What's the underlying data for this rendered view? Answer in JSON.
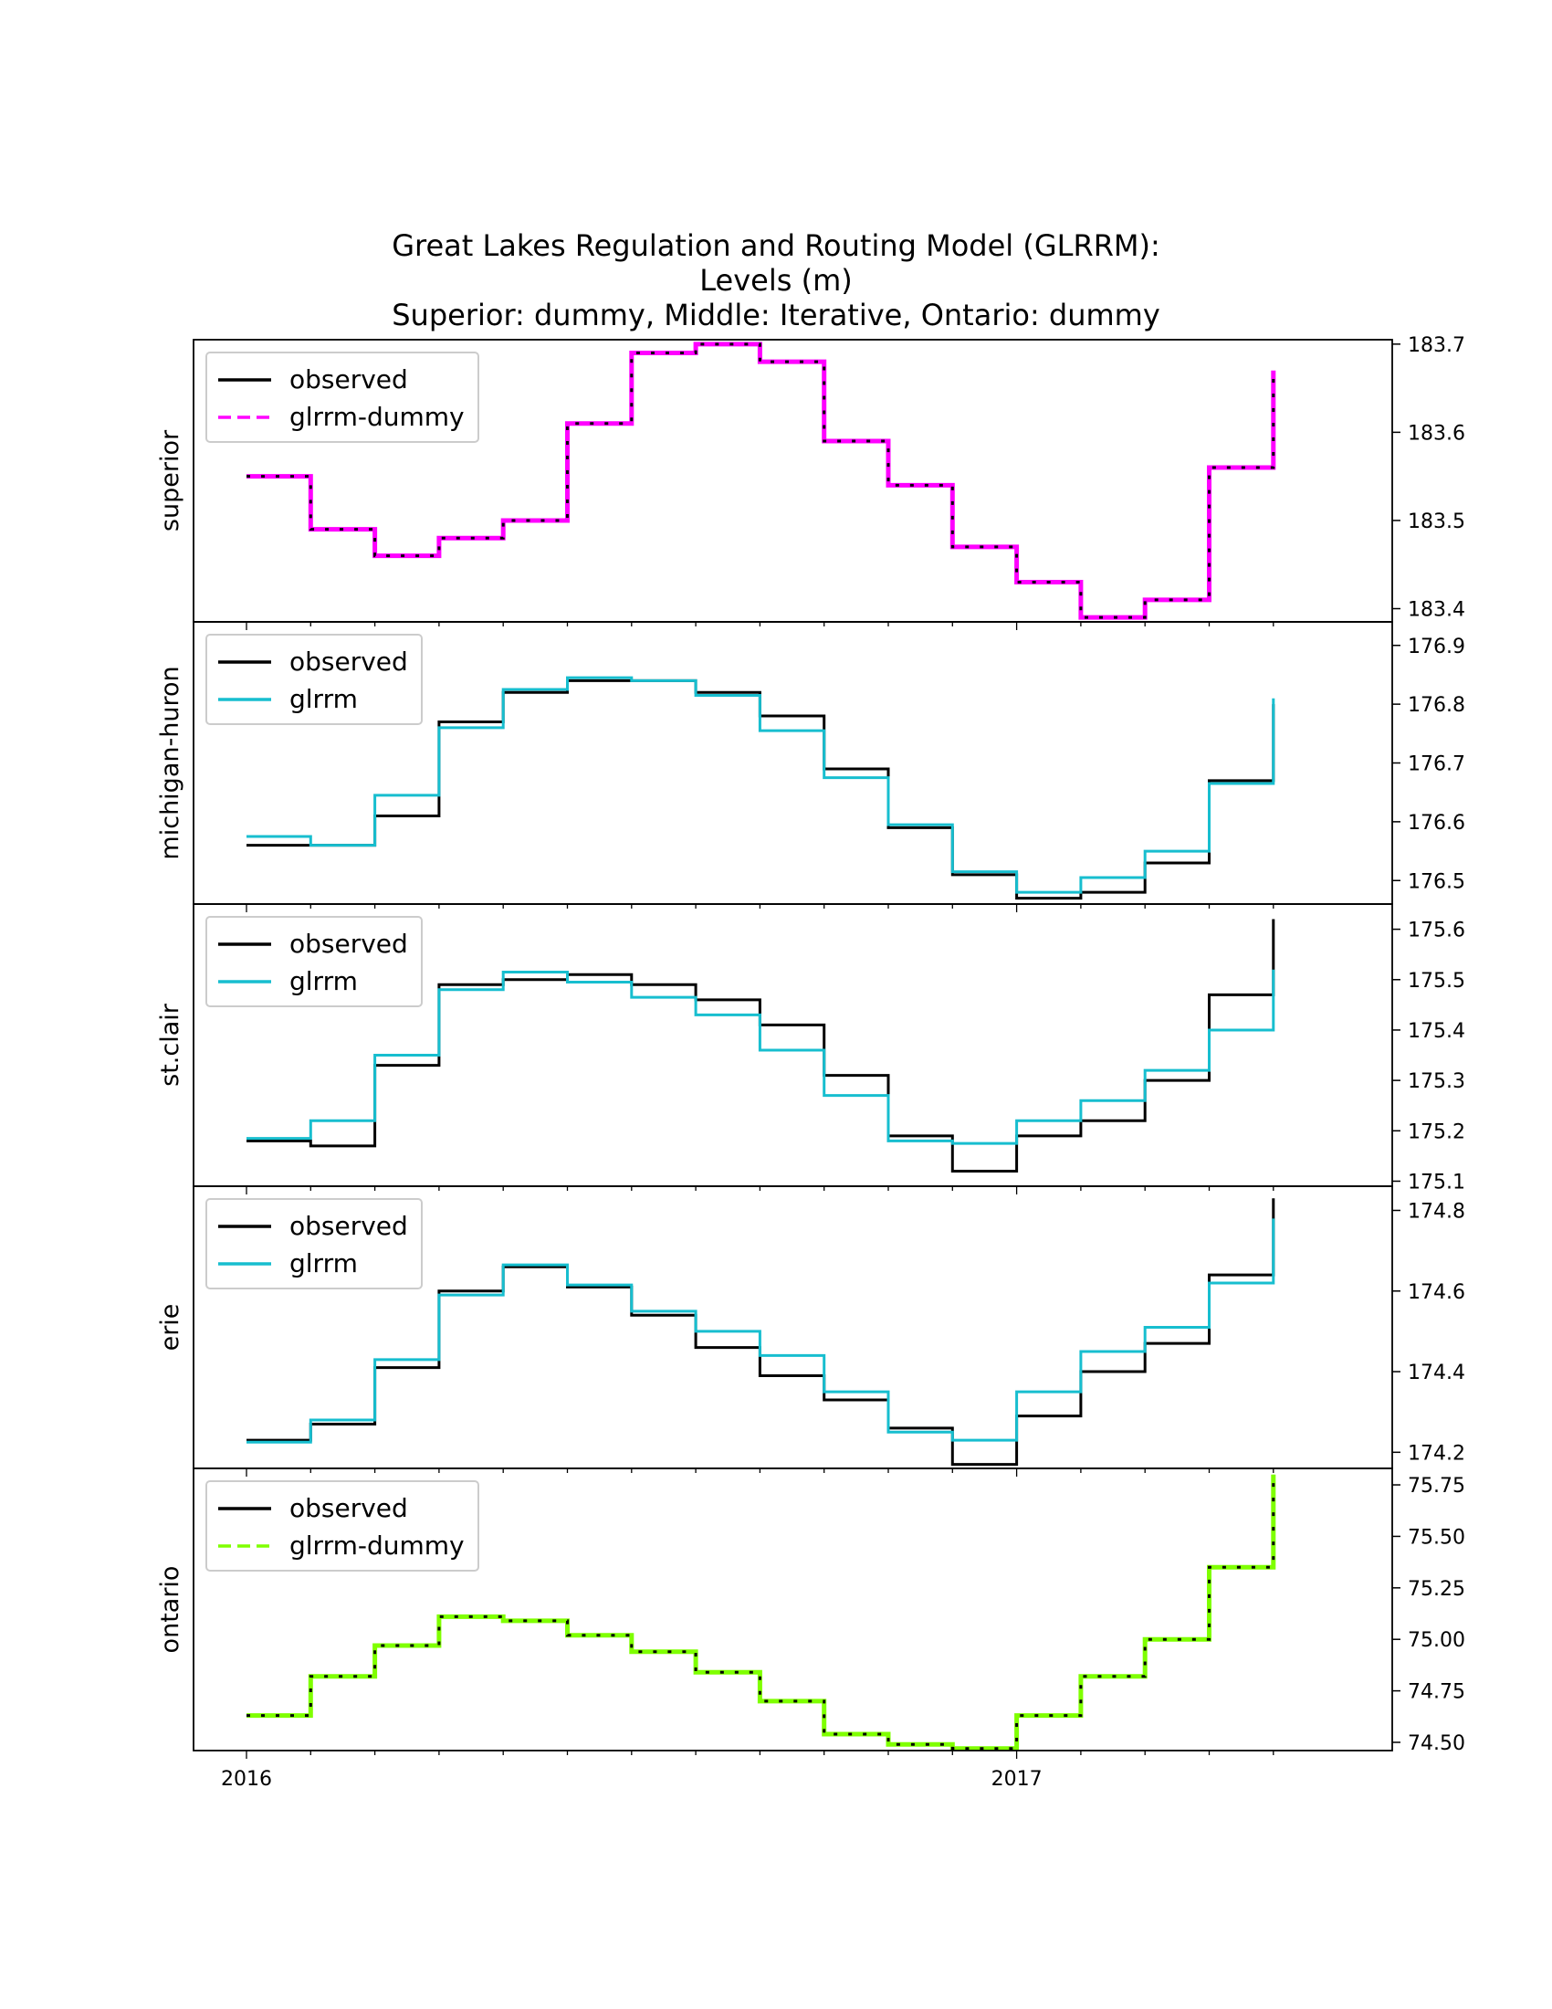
{
  "title": {
    "line1": "Great Lakes Regulation and Routing Model (GLRRM):",
    "line2": "Levels (m)",
    "line3": "Superior: dummy, Middle: Iterative, Ontario: dummy"
  },
  "chart_data": {
    "type": "line",
    "x_ticks": [
      "2016",
      "2017"
    ],
    "x_tick_index": [
      0,
      12
    ],
    "colors": {
      "observed": "#000000",
      "glrrm": "#17becf",
      "superior_dummy": "#ff00ff",
      "ontario_dummy": "#7fff00"
    },
    "panels": [
      {
        "ylabel": "superior",
        "ylim": [
          183.385,
          183.705
        ],
        "yticks": [
          "183.4",
          "183.5",
          "183.6",
          "183.7"
        ],
        "ytick_values": [
          183.4,
          183.5,
          183.6,
          183.7
        ],
        "legend": [
          "observed",
          "glrrm-dummy"
        ],
        "model_style": "dashed",
        "model_color": "#ff00ff",
        "series": [
          {
            "name": "observed",
            "values": [
              183.55,
              183.49,
              183.46,
              183.48,
              183.5,
              183.61,
              183.69,
              183.7,
              183.68,
              183.59,
              183.54,
              183.47,
              183.43,
              183.39,
              183.41,
              183.56,
              183.67
            ]
          },
          {
            "name": "glrrm-dummy",
            "values": [
              183.55,
              183.49,
              183.46,
              183.48,
              183.5,
              183.61,
              183.69,
              183.7,
              183.68,
              183.59,
              183.54,
              183.47,
              183.43,
              183.39,
              183.41,
              183.56,
              183.67
            ]
          }
        ]
      },
      {
        "ylabel": "michigan-huron",
        "ylim": [
          176.46,
          176.94
        ],
        "yticks": [
          "176.5",
          "176.6",
          "176.7",
          "176.8",
          "176.9"
        ],
        "ytick_values": [
          176.5,
          176.6,
          176.7,
          176.8,
          176.9
        ],
        "legend": [
          "observed",
          "glrrm"
        ],
        "model_style": "solid",
        "model_color": "#17becf",
        "series": [
          {
            "name": "observed",
            "values": [
              176.56,
              176.56,
              176.61,
              176.77,
              176.82,
              176.84,
              176.84,
              176.82,
              176.78,
              176.69,
              176.59,
              176.51,
              176.47,
              176.48,
              176.53,
              176.67,
              176.8
            ]
          },
          {
            "name": "glrrm",
            "values": [
              176.575,
              176.56,
              176.645,
              176.76,
              176.825,
              176.845,
              176.84,
              176.815,
              176.755,
              176.675,
              176.595,
              176.515,
              176.48,
              176.505,
              176.55,
              176.665,
              176.81
            ]
          }
        ]
      },
      {
        "ylabel": "st.clair",
        "ylim": [
          175.09,
          175.65
        ],
        "yticks": [
          "175.1",
          "175.2",
          "175.3",
          "175.4",
          "175.5",
          "175.6"
        ],
        "ytick_values": [
          175.1,
          175.2,
          175.3,
          175.4,
          175.5,
          175.6
        ],
        "legend": [
          "observed",
          "glrrm"
        ],
        "model_style": "solid",
        "model_color": "#17becf",
        "series": [
          {
            "name": "observed",
            "values": [
              175.18,
              175.17,
              175.33,
              175.49,
              175.5,
              175.51,
              175.49,
              175.46,
              175.41,
              175.31,
              175.19,
              175.12,
              175.19,
              175.22,
              175.3,
              175.47,
              175.62
            ]
          },
          {
            "name": "glrrm",
            "values": [
              175.185,
              175.22,
              175.35,
              175.48,
              175.515,
              175.495,
              175.465,
              175.43,
              175.36,
              175.27,
              175.18,
              175.175,
              175.22,
              175.26,
              175.32,
              175.4,
              175.52
            ]
          }
        ]
      },
      {
        "ylabel": "erie",
        "ylim": [
          174.16,
          174.86
        ],
        "yticks": [
          "174.2",
          "174.4",
          "174.6",
          "174.8"
        ],
        "ytick_values": [
          174.2,
          174.4,
          174.6,
          174.8
        ],
        "legend": [
          "observed",
          "glrrm"
        ],
        "model_style": "solid",
        "model_color": "#17becf",
        "series": [
          {
            "name": "observed",
            "values": [
              174.23,
              174.27,
              174.41,
              174.6,
              174.66,
              174.61,
              174.54,
              174.46,
              174.39,
              174.33,
              174.26,
              174.17,
              174.29,
              174.4,
              174.47,
              174.64,
              174.83
            ]
          },
          {
            "name": "glrrm",
            "values": [
              174.225,
              174.28,
              174.43,
              174.59,
              174.665,
              174.615,
              174.55,
              174.5,
              174.44,
              174.35,
              174.25,
              174.23,
              174.35,
              174.45,
              174.51,
              174.62,
              174.78
            ]
          }
        ]
      },
      {
        "ylabel": "ontario",
        "ylim": [
          74.46,
          75.83
        ],
        "yticks": [
          "74.50",
          "74.75",
          "75.00",
          "75.25",
          "75.50",
          "75.75"
        ],
        "ytick_values": [
          74.5,
          74.75,
          75.0,
          75.25,
          75.5,
          75.75
        ],
        "legend": [
          "observed",
          "glrrm-dummy"
        ],
        "model_style": "dashed",
        "model_color": "#7fff00",
        "series": [
          {
            "name": "observed",
            "values": [
              74.63,
              74.82,
              74.97,
              75.11,
              75.09,
              75.02,
              74.94,
              74.84,
              74.7,
              74.54,
              74.49,
              74.47,
              74.63,
              74.82,
              75.0,
              75.35,
              75.8
            ]
          },
          {
            "name": "glrrm-dummy",
            "values": [
              74.63,
              74.82,
              74.97,
              75.11,
              75.09,
              75.02,
              74.94,
              74.84,
              74.7,
              74.54,
              74.49,
              74.47,
              74.63,
              74.82,
              75.0,
              75.35,
              75.8
            ]
          }
        ]
      }
    ]
  }
}
